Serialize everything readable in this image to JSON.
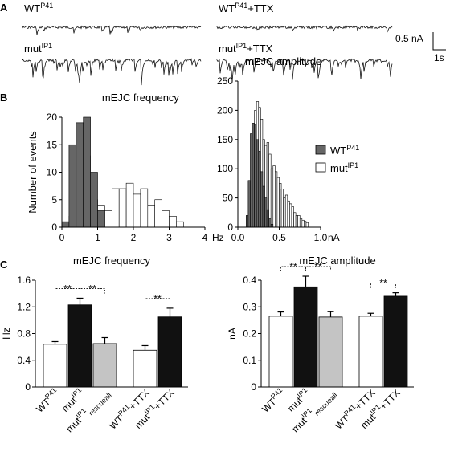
{
  "panels": {
    "A": "A",
    "B": "B",
    "C": "C"
  },
  "traces": {
    "wt": {
      "base": "WT",
      "sup": "P41",
      "suffix": ""
    },
    "wt_ttx": {
      "base": "WT",
      "sup": "P41",
      "suffix": "+TTX"
    },
    "mut": {
      "base": "mut",
      "sup": "IP1",
      "suffix": ""
    },
    "mut_ttx": {
      "base": "mut",
      "sup": "IP1",
      "suffix": "+TTX"
    },
    "scale_amp": "0.5 nA",
    "scale_time": "1s"
  },
  "legend": {
    "wt": {
      "base": "WT",
      "sup": "P41",
      "color": "#666666"
    },
    "mut": {
      "base": "mut",
      "sup": "IP1",
      "color": "#ffffff"
    }
  },
  "chart_data": [
    {
      "id": "freq_hist",
      "type": "bar",
      "title": "mEJC frequency",
      "ylabel": "Number of events",
      "xunit": "Hz",
      "xlim": [
        0,
        4
      ],
      "ylim": [
        0,
        20
      ],
      "xticks": [
        "0",
        "1",
        "2",
        "3",
        "4"
      ],
      "yticks": [
        "0",
        "5",
        "10",
        "15",
        "20"
      ],
      "bin_width": 0.2,
      "series": [
        {
          "name": "WT P41",
          "color": "#666666",
          "bin_starts": [
            0.0,
            0.2,
            0.4,
            0.6,
            0.8,
            1.0
          ],
          "values": [
            1,
            15,
            19,
            20,
            10,
            3
          ]
        },
        {
          "name": "mut IP1",
          "color": "#ffffff",
          "bin_starts": [
            0.2,
            0.4,
            0.6,
            0.8,
            1.0,
            1.2,
            1.4,
            1.6,
            1.8,
            2.0,
            2.2,
            2.4,
            2.6,
            2.8,
            3.0,
            3.2
          ],
          "values": [
            2,
            6,
            13,
            5,
            4,
            3,
            7,
            7,
            8,
            6,
            7,
            4,
            5,
            3,
            2,
            1
          ]
        }
      ]
    },
    {
      "id": "amp_hist",
      "type": "bar",
      "title": "mEJC amplitude",
      "ylabel": "",
      "xunit": "nA",
      "xlim": [
        0,
        1
      ],
      "ylim": [
        0,
        250
      ],
      "xticks": [
        "0.0",
        "0.5",
        "1.0"
      ],
      "yticks": [
        "0",
        "50",
        "100",
        "150",
        "200",
        "250"
      ],
      "bin_width": 0.025,
      "series": [
        {
          "name": "WT P41",
          "color": "#666666",
          "bin_starts": [
            0.1,
            0.125,
            0.15,
            0.175,
            0.2,
            0.225,
            0.25,
            0.275,
            0.3,
            0.325,
            0.35,
            0.375,
            0.4
          ],
          "values": [
            20,
            80,
            160,
            178,
            175,
            150,
            130,
            95,
            70,
            50,
            30,
            15,
            5
          ]
        },
        {
          "name": "mut IP1",
          "color": "#ffffff",
          "bin_starts": [
            0.15,
            0.175,
            0.2,
            0.225,
            0.25,
            0.275,
            0.3,
            0.325,
            0.35,
            0.375,
            0.4,
            0.425,
            0.45,
            0.475,
            0.5,
            0.525,
            0.55,
            0.575,
            0.6,
            0.625,
            0.65,
            0.675,
            0.7,
            0.725,
            0.75,
            0.775,
            0.8,
            0.825
          ],
          "values": [
            40,
            130,
            200,
            215,
            205,
            185,
            150,
            140,
            145,
            125,
            100,
            105,
            95,
            85,
            75,
            65,
            50,
            55,
            45,
            40,
            35,
            25,
            20,
            20,
            15,
            12,
            10,
            8
          ]
        }
      ]
    },
    {
      "id": "freq_bars",
      "type": "bar",
      "title": "mEJC frequency",
      "ylabel": "Hz",
      "ylim": [
        0,
        1.6
      ],
      "yticks": [
        "0",
        "0.4",
        "0.8",
        "1.2",
        "1.6"
      ],
      "categories": [
        {
          "base": "WT",
          "sup": "P41",
          "sub": "",
          "suffix": "",
          "color": "#ffffff",
          "value": 0.64,
          "err": 0.04
        },
        {
          "base": "mut",
          "sup": "IP1",
          "sub": "",
          "suffix": "",
          "color": "#111111",
          "value": 1.23,
          "err": 0.1
        },
        {
          "base": "mut",
          "sup": "IP1",
          "sub": "rescueall",
          "suffix": "",
          "color": "#c4c4c4",
          "value": 0.65,
          "err": 0.09
        },
        {
          "base": "WT",
          "sup": "P41",
          "sub": "",
          "suffix": "+TTX",
          "color": "#ffffff",
          "value": 0.55,
          "err": 0.07
        },
        {
          "base": "mut",
          "sup": "IP1",
          "sub": "",
          "suffix": "+TTX",
          "color": "#111111",
          "value": 1.05,
          "err": 0.13
        }
      ],
      "significance": [
        {
          "from": 0,
          "to": 1,
          "label": "**"
        },
        {
          "from": 1,
          "to": 2,
          "label": "**"
        },
        {
          "from": 3,
          "to": 4,
          "label": "**"
        }
      ]
    },
    {
      "id": "amp_bars",
      "type": "bar",
      "title": "mEJC amplitude",
      "ylabel": "nA",
      "ylim": [
        0,
        0.4
      ],
      "yticks": [
        "0",
        "0.1",
        "0.2",
        "0.3",
        "0.4"
      ],
      "categories": [
        {
          "base": "WT",
          "sup": "P41",
          "sub": "",
          "suffix": "",
          "color": "#ffffff",
          "value": 0.265,
          "err": 0.016
        },
        {
          "base": "mut",
          "sup": "IP1",
          "sub": "",
          "suffix": "",
          "color": "#111111",
          "value": 0.375,
          "err": 0.04
        },
        {
          "base": "mut",
          "sup": "IP1",
          "sub": "rescueall",
          "suffix": "",
          "color": "#c4c4c4",
          "value": 0.262,
          "err": 0.02
        },
        {
          "base": "WT",
          "sup": "P41",
          "sub": "",
          "suffix": "+TTX",
          "color": "#ffffff",
          "value": 0.265,
          "err": 0.011
        },
        {
          "base": "mut",
          "sup": "IP1",
          "sub": "",
          "suffix": "+TTX",
          "color": "#111111",
          "value": 0.34,
          "err": 0.013
        }
      ],
      "significance": [
        {
          "from": 0,
          "to": 1,
          "label": "**"
        },
        {
          "from": 1,
          "to": 2,
          "label": "**"
        },
        {
          "from": 3,
          "to": 4,
          "label": "**"
        }
      ]
    }
  ]
}
